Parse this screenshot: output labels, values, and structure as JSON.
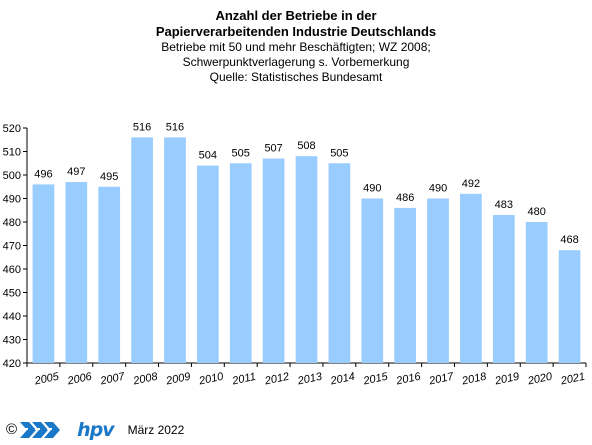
{
  "header": {
    "title_line1": "Anzahl der Betriebe in der",
    "title_line2": "Papierverarbeitenden Industrie Deutschlands",
    "subtitle_line1": "Betriebe  mit 50 und  mehr Beschäftigten;  WZ 2008;",
    "subtitle_line2": "Schwerpunktverlagerung   s. Vorbemerkung",
    "subtitle_line3": "Quelle:  Statistisches Bundesamt"
  },
  "footer": {
    "copyright": "©",
    "logo_text": "hpv",
    "date": "März 2022"
  },
  "colors": {
    "bar": "#99ccff",
    "logo": "#1a78c8"
  },
  "chart_data": {
    "type": "bar",
    "categories": [
      "2005",
      "2006",
      "2007",
      "2008",
      "2009",
      "2010",
      "2011",
      "2012",
      "2013",
      "2014",
      "2015",
      "2016",
      "2017",
      "2018",
      "2019",
      "2020",
      "2021"
    ],
    "values": [
      496,
      497,
      495,
      516,
      516,
      504,
      505,
      507,
      508,
      505,
      490,
      486,
      490,
      492,
      483,
      480,
      468
    ],
    "data_labels": [
      "496",
      "497",
      "495",
      "516",
      "516",
      "504",
      "505",
      "507",
      "508",
      "505",
      "490",
      "486",
      "490",
      "492",
      "483",
      "480",
      "468"
    ],
    "ylim": [
      420,
      520
    ],
    "yticks": [
      420,
      430,
      440,
      450,
      460,
      470,
      480,
      490,
      500,
      510,
      520
    ],
    "grid": false,
    "legend": "none"
  }
}
